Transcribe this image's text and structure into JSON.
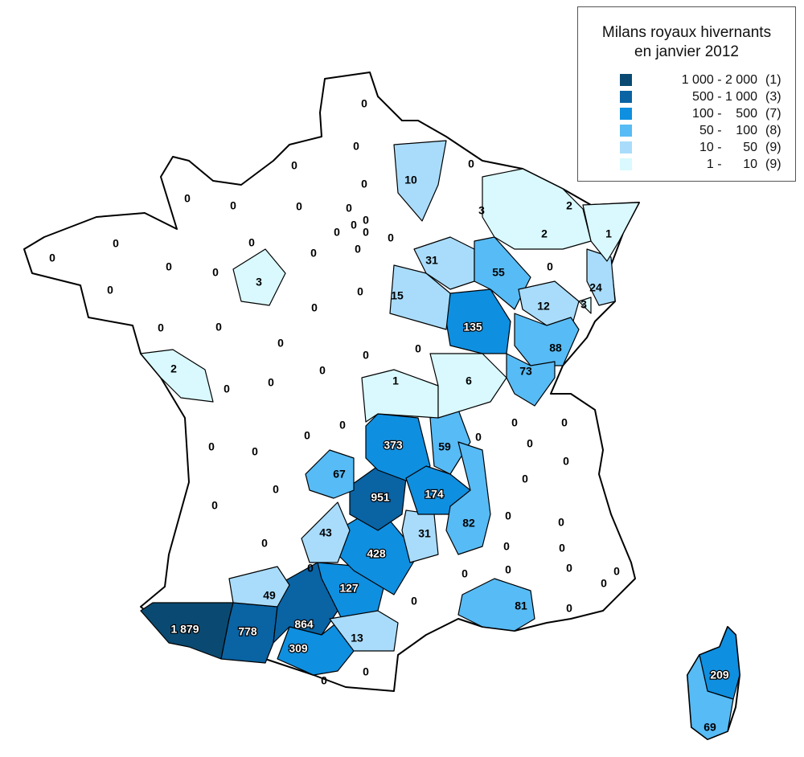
{
  "legend": {
    "title_line1": "Milans royaux hivernants",
    "title_line2": "en janvier 2012",
    "classes": [
      {
        "range": "1 000 - 2 000",
        "count": "(1)",
        "color": "#0a4a72"
      },
      {
        "range": "500 - 1 000",
        "count": "(3)",
        "color": "#0a63a3"
      },
      {
        "range": "100 -    500",
        "count": "(7)",
        "color": "#0f8fe0"
      },
      {
        "range": "50 -    100",
        "count": "(8)",
        "color": "#57bbf5"
      },
      {
        "range": "10 -      50",
        "count": "(9)",
        "color": "#a9dcfa"
      },
      {
        "range": "1 -      10",
        "count": "(9)",
        "color": "#d9f9fe"
      }
    ]
  },
  "departements": [
    "0",
    "0",
    "0",
    "0",
    "0",
    "10",
    "0",
    "0",
    "0",
    "0",
    "0",
    "0",
    "0",
    "0",
    "0",
    "0",
    "0",
    "0",
    "0",
    "0",
    "0",
    "0",
    "3",
    "0",
    "0",
    "0",
    "31",
    "55",
    "3",
    "2",
    "2",
    "1",
    "0",
    "24",
    "15",
    "135",
    "12",
    "3",
    "88",
    "73",
    "0",
    "6",
    "0",
    "0",
    "0",
    "0",
    "0",
    "0",
    "0",
    "2",
    "1",
    "373",
    "0",
    "0",
    "0",
    "0",
    "59",
    "0",
    "0",
    "0",
    "0",
    "0",
    "67",
    "951",
    "174",
    "0",
    "0",
    "82",
    "0",
    "0",
    "43",
    "428",
    "31",
    "0",
    "0",
    "0",
    "0",
    "0",
    "127",
    "0",
    "0",
    "0",
    "0",
    "0",
    "49",
    "0",
    "81",
    "0",
    "1 879",
    "778",
    "864",
    "13",
    "309",
    "0",
    "0",
    "209",
    "69"
  ]
}
